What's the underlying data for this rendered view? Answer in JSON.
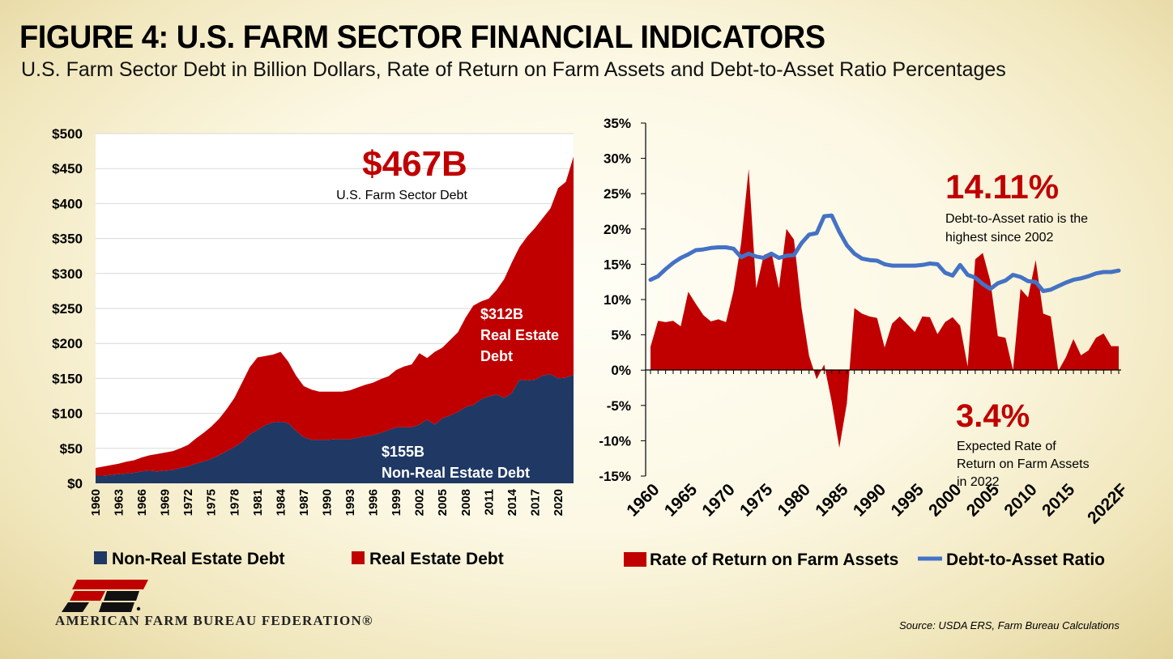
{
  "header": {
    "title": "FIGURE 4: U.S. FARM SECTOR FINANCIAL INDICATORS",
    "subtitle": "U.S. Farm Sector Debt in Billion Dollars, Rate of Return on Farm Assets and Debt-to-Asset Ratio Percentages"
  },
  "colors": {
    "red": "#c00000",
    "navy": "#1f3864",
    "blue": "#4472c4"
  },
  "chart_data": [
    {
      "type": "area",
      "stacked": true,
      "grid": true,
      "ylim": [
        0,
        500
      ],
      "y_ticks": [
        "$0",
        "$50",
        "$100",
        "$150",
        "$200",
        "$250",
        "$300",
        "$350",
        "$400",
        "$450",
        "$500"
      ],
      "x_tick_labels": [
        "1960",
        "1963",
        "1966",
        "1969",
        "1972",
        "1975",
        "1978",
        "1981",
        "1984",
        "1987",
        "1990",
        "1993",
        "1996",
        "1999",
        "2002",
        "2005",
        "2008",
        "2011",
        "2014",
        "2017",
        "2020"
      ],
      "x": [
        1960,
        1961,
        1962,
        1963,
        1964,
        1965,
        1966,
        1967,
        1968,
        1969,
        1970,
        1971,
        1972,
        1973,
        1974,
        1975,
        1976,
        1977,
        1978,
        1979,
        1980,
        1981,
        1982,
        1983,
        1984,
        1985,
        1986,
        1987,
        1988,
        1989,
        1990,
        1991,
        1992,
        1993,
        1994,
        1995,
        1996,
        1997,
        1998,
        1999,
        2000,
        2001,
        2002,
        2003,
        2004,
        2005,
        2006,
        2007,
        2008,
        2009,
        2010,
        2011,
        2012,
        2013,
        2014,
        2015,
        2016,
        2017,
        2018,
        2019,
        2020,
        2021,
        2022
      ],
      "series": [
        {
          "name": "Non-Real Estate Debt",
          "color": "#1f3864",
          "values": [
            11,
            11,
            12,
            13,
            14,
            15,
            17,
            18,
            17,
            18,
            19,
            22,
            24,
            28,
            31,
            35,
            40,
            46,
            52,
            59,
            70,
            76,
            83,
            87,
            88,
            86,
            75,
            66,
            62,
            62,
            62,
            63,
            63,
            63,
            65,
            67,
            69,
            72,
            76,
            80,
            80,
            80,
            84,
            91,
            84,
            93,
            97,
            102,
            109,
            112,
            120,
            124,
            127,
            122,
            129,
            148,
            147,
            148,
            154,
            156,
            150,
            151,
            155
          ]
        },
        {
          "name": "Real Estate Debt",
          "color": "#c00000",
          "values": [
            11,
            13,
            14,
            15,
            17,
            18,
            20,
            22,
            25,
            26,
            27,
            28,
            31,
            36,
            41,
            46,
            52,
            60,
            70,
            85,
            96,
            104,
            99,
            97,
            100,
            88,
            79,
            73,
            72,
            69,
            69,
            68,
            68,
            70,
            72,
            74,
            75,
            77,
            77,
            82,
            87,
            90,
            102,
            88,
            104,
            101,
            108,
            114,
            128,
            142,
            140,
            140,
            149,
            170,
            187,
            190,
            206,
            217,
            225,
            237,
            272,
            280,
            312
          ]
        }
      ],
      "annotations": {
        "total_value": "$467B",
        "total_label": "U.S. Farm Sector Debt",
        "re_value": "$312B",
        "re_line1": "Real Estate",
        "re_line2": "Debt",
        "nre_value": "$155B",
        "nre_label": "Non-Real Estate Debt"
      }
    },
    {
      "type": "area",
      "grid": false,
      "ylim": [
        -15,
        35
      ],
      "y_ticks": [
        "-15%",
        "-10%",
        "-5%",
        "0%",
        "5%",
        "10%",
        "15%",
        "20%",
        "25%",
        "30%",
        "35%"
      ],
      "x_tick_labels": [
        "1960",
        "1965",
        "1970",
        "1975",
        "1980",
        "1985",
        "1990",
        "1995",
        "2000",
        "2005",
        "2010",
        "2015",
        "2022F"
      ],
      "x": [
        1960,
        1961,
        1962,
        1963,
        1964,
        1965,
        1966,
        1967,
        1968,
        1969,
        1970,
        1971,
        1972,
        1973,
        1974,
        1975,
        1976,
        1977,
        1978,
        1979,
        1980,
        1981,
        1982,
        1983,
        1984,
        1985,
        1986,
        1987,
        1988,
        1989,
        1990,
        1991,
        1992,
        1993,
        1994,
        1995,
        1996,
        1997,
        1998,
        1999,
        2000,
        2001,
        2002,
        2003,
        2004,
        2005,
        2006,
        2007,
        2008,
        2009,
        2010,
        2011,
        2012,
        2013,
        2014,
        2015,
        2016,
        2017,
        2018,
        2019,
        2020,
        2021,
        2022
      ],
      "series": [
        {
          "name": "Rate of Return on Farm Assets",
          "type": "area",
          "color": "#c00000",
          "values": [
            3.3,
            7.0,
            6.8,
            7.0,
            6.2,
            11.1,
            9.4,
            7.8,
            6.9,
            7.2,
            6.8,
            11.2,
            18.0,
            28.5,
            11.6,
            16.3,
            16.8,
            11.6,
            20.0,
            18.5,
            8.8,
            2.0,
            -1.3,
            0.8,
            -4.5,
            -11.0,
            -4.7,
            8.8,
            8.0,
            7.6,
            7.4,
            3.2,
            6.6,
            7.6,
            6.5,
            5.4,
            7.6,
            7.5,
            5.1,
            6.8,
            7.5,
            6.3,
            0.5,
            15.7,
            16.6,
            12.6,
            4.8,
            4.6,
            0.0,
            11.5,
            10.3,
            15.6,
            8.0,
            7.6,
            -0.1,
            1.8,
            4.4,
            2.1,
            2.8,
            4.6,
            5.2,
            3.4,
            3.4
          ]
        },
        {
          "name": "Debt-to-Asset Ratio",
          "type": "line",
          "color": "#4472c4",
          "values": [
            12.8,
            13.3,
            14.3,
            15.2,
            15.9,
            16.4,
            17.0,
            17.1,
            17.3,
            17.4,
            17.4,
            17.2,
            16.0,
            16.5,
            16.1,
            15.9,
            16.5,
            15.9,
            16.2,
            16.3,
            18.0,
            19.2,
            19.4,
            21.8,
            21.9,
            19.6,
            17.7,
            16.5,
            15.8,
            15.6,
            15.5,
            15.0,
            14.8,
            14.8,
            14.8,
            14.8,
            14.9,
            15.1,
            15.0,
            13.8,
            13.4,
            14.9,
            13.5,
            13.1,
            12.2,
            11.5,
            12.3,
            12.7,
            13.5,
            13.2,
            12.6,
            12.5,
            11.2,
            11.4,
            11.9,
            12.4,
            12.8,
            13.0,
            13.3,
            13.7,
            13.9,
            13.9,
            14.1
          ]
        }
      ],
      "annotations": {
        "ratio_value": "14.11%",
        "ratio_line1": "Debt-to-Asset ratio is the",
        "ratio_line2": "highest since 2002",
        "ror_value": "3.4%",
        "ror_line1": "Expected Rate of",
        "ror_line2": "Return on Farm Assets",
        "ror_line3": "in 2022"
      }
    }
  ],
  "footer": {
    "logo_text": "AMERICAN FARM BUREAU FEDERATION®",
    "source": "Source: USDA ERS, Farm Bureau Calculations"
  }
}
